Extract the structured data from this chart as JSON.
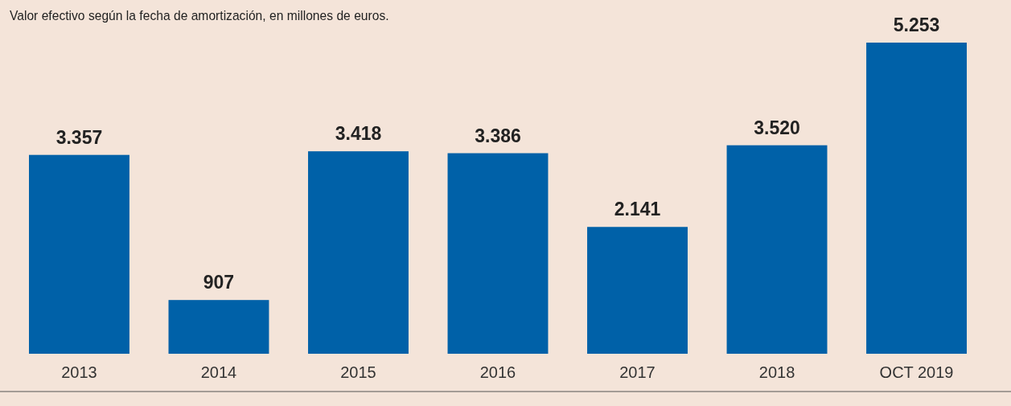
{
  "chart_data": {
    "type": "bar",
    "title": "Valor efectivo según la fecha de amortización, en millones de euros.",
    "categories": [
      "2013",
      "2014",
      "2015",
      "2016",
      "2017",
      "2018",
      "OCT 2019"
    ],
    "values": [
      3357,
      907,
      3418,
      3386,
      2141,
      3520,
      5253
    ],
    "color": "#0061a8",
    "value_labels": [
      "3.357",
      "907",
      "3.418",
      "3.386",
      "2.141",
      "3.520",
      "5.253"
    ],
    "grid": false
  }
}
